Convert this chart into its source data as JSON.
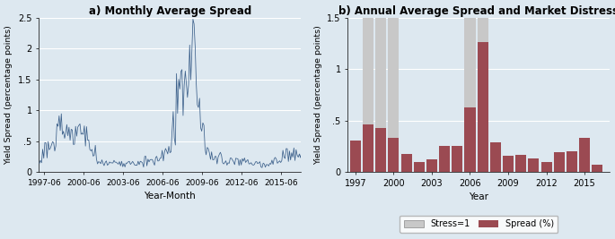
{
  "title_a": "a) Monthly Average Spread",
  "title_b": "b) Annual Average Spread and Market Distress",
  "xlabel_a": "Year-Month",
  "xlabel_b": "Year",
  "ylabel": "Yield Spread (percentage points)",
  "background_color": "#dde8f0",
  "line_color": "#3b5f8a",
  "bar_color": "#9b4a52",
  "stress_color": "#c8c8c8",
  "years": [
    1997,
    1998,
    1999,
    2000,
    2001,
    2002,
    2003,
    2004,
    2005,
    2006,
    2007,
    2008,
    2009,
    2010,
    2011,
    2012,
    2013,
    2014,
    2015,
    2016
  ],
  "annual_spread": [
    0.31,
    0.46,
    0.43,
    0.33,
    0.18,
    0.1,
    0.12,
    0.25,
    0.25,
    0.63,
    1.26,
    0.29,
    0.16,
    0.17,
    0.13,
    0.1,
    0.19,
    0.2,
    0.33,
    0.07
  ],
  "stress": [
    0,
    1,
    1,
    1,
    0,
    0,
    0,
    0,
    0,
    1,
    1,
    0,
    0,
    0,
    0,
    0,
    0,
    0,
    0,
    0
  ],
  "stress_height": 1.5,
  "ylim_b": [
    0,
    1.5
  ],
  "yticks_b": [
    0,
    0.5,
    1.0,
    1.5
  ],
  "ytick_labels_b": [
    "0",
    ".5",
    "1",
    "1.5"
  ],
  "xticks_b": [
    1997,
    2000,
    2003,
    2006,
    2009,
    2012,
    2015
  ],
  "ylim_a": [
    0,
    2.5
  ],
  "yticks_a": [
    0,
    0.5,
    1.0,
    1.5,
    2.0,
    2.5
  ],
  "ytick_labels_a": [
    "0",
    ".5",
    "1",
    "1.5",
    "2",
    "2.5"
  ],
  "xtick_pos_a": [
    1997.417,
    2000.417,
    2003.417,
    2006.417,
    2009.417,
    2012.417,
    2015.417
  ],
  "xtick_labels_a": [
    "1997-06",
    "2000-06",
    "2003-06",
    "2006-06",
    "2009-06",
    "2012-06",
    "2015-06"
  ]
}
